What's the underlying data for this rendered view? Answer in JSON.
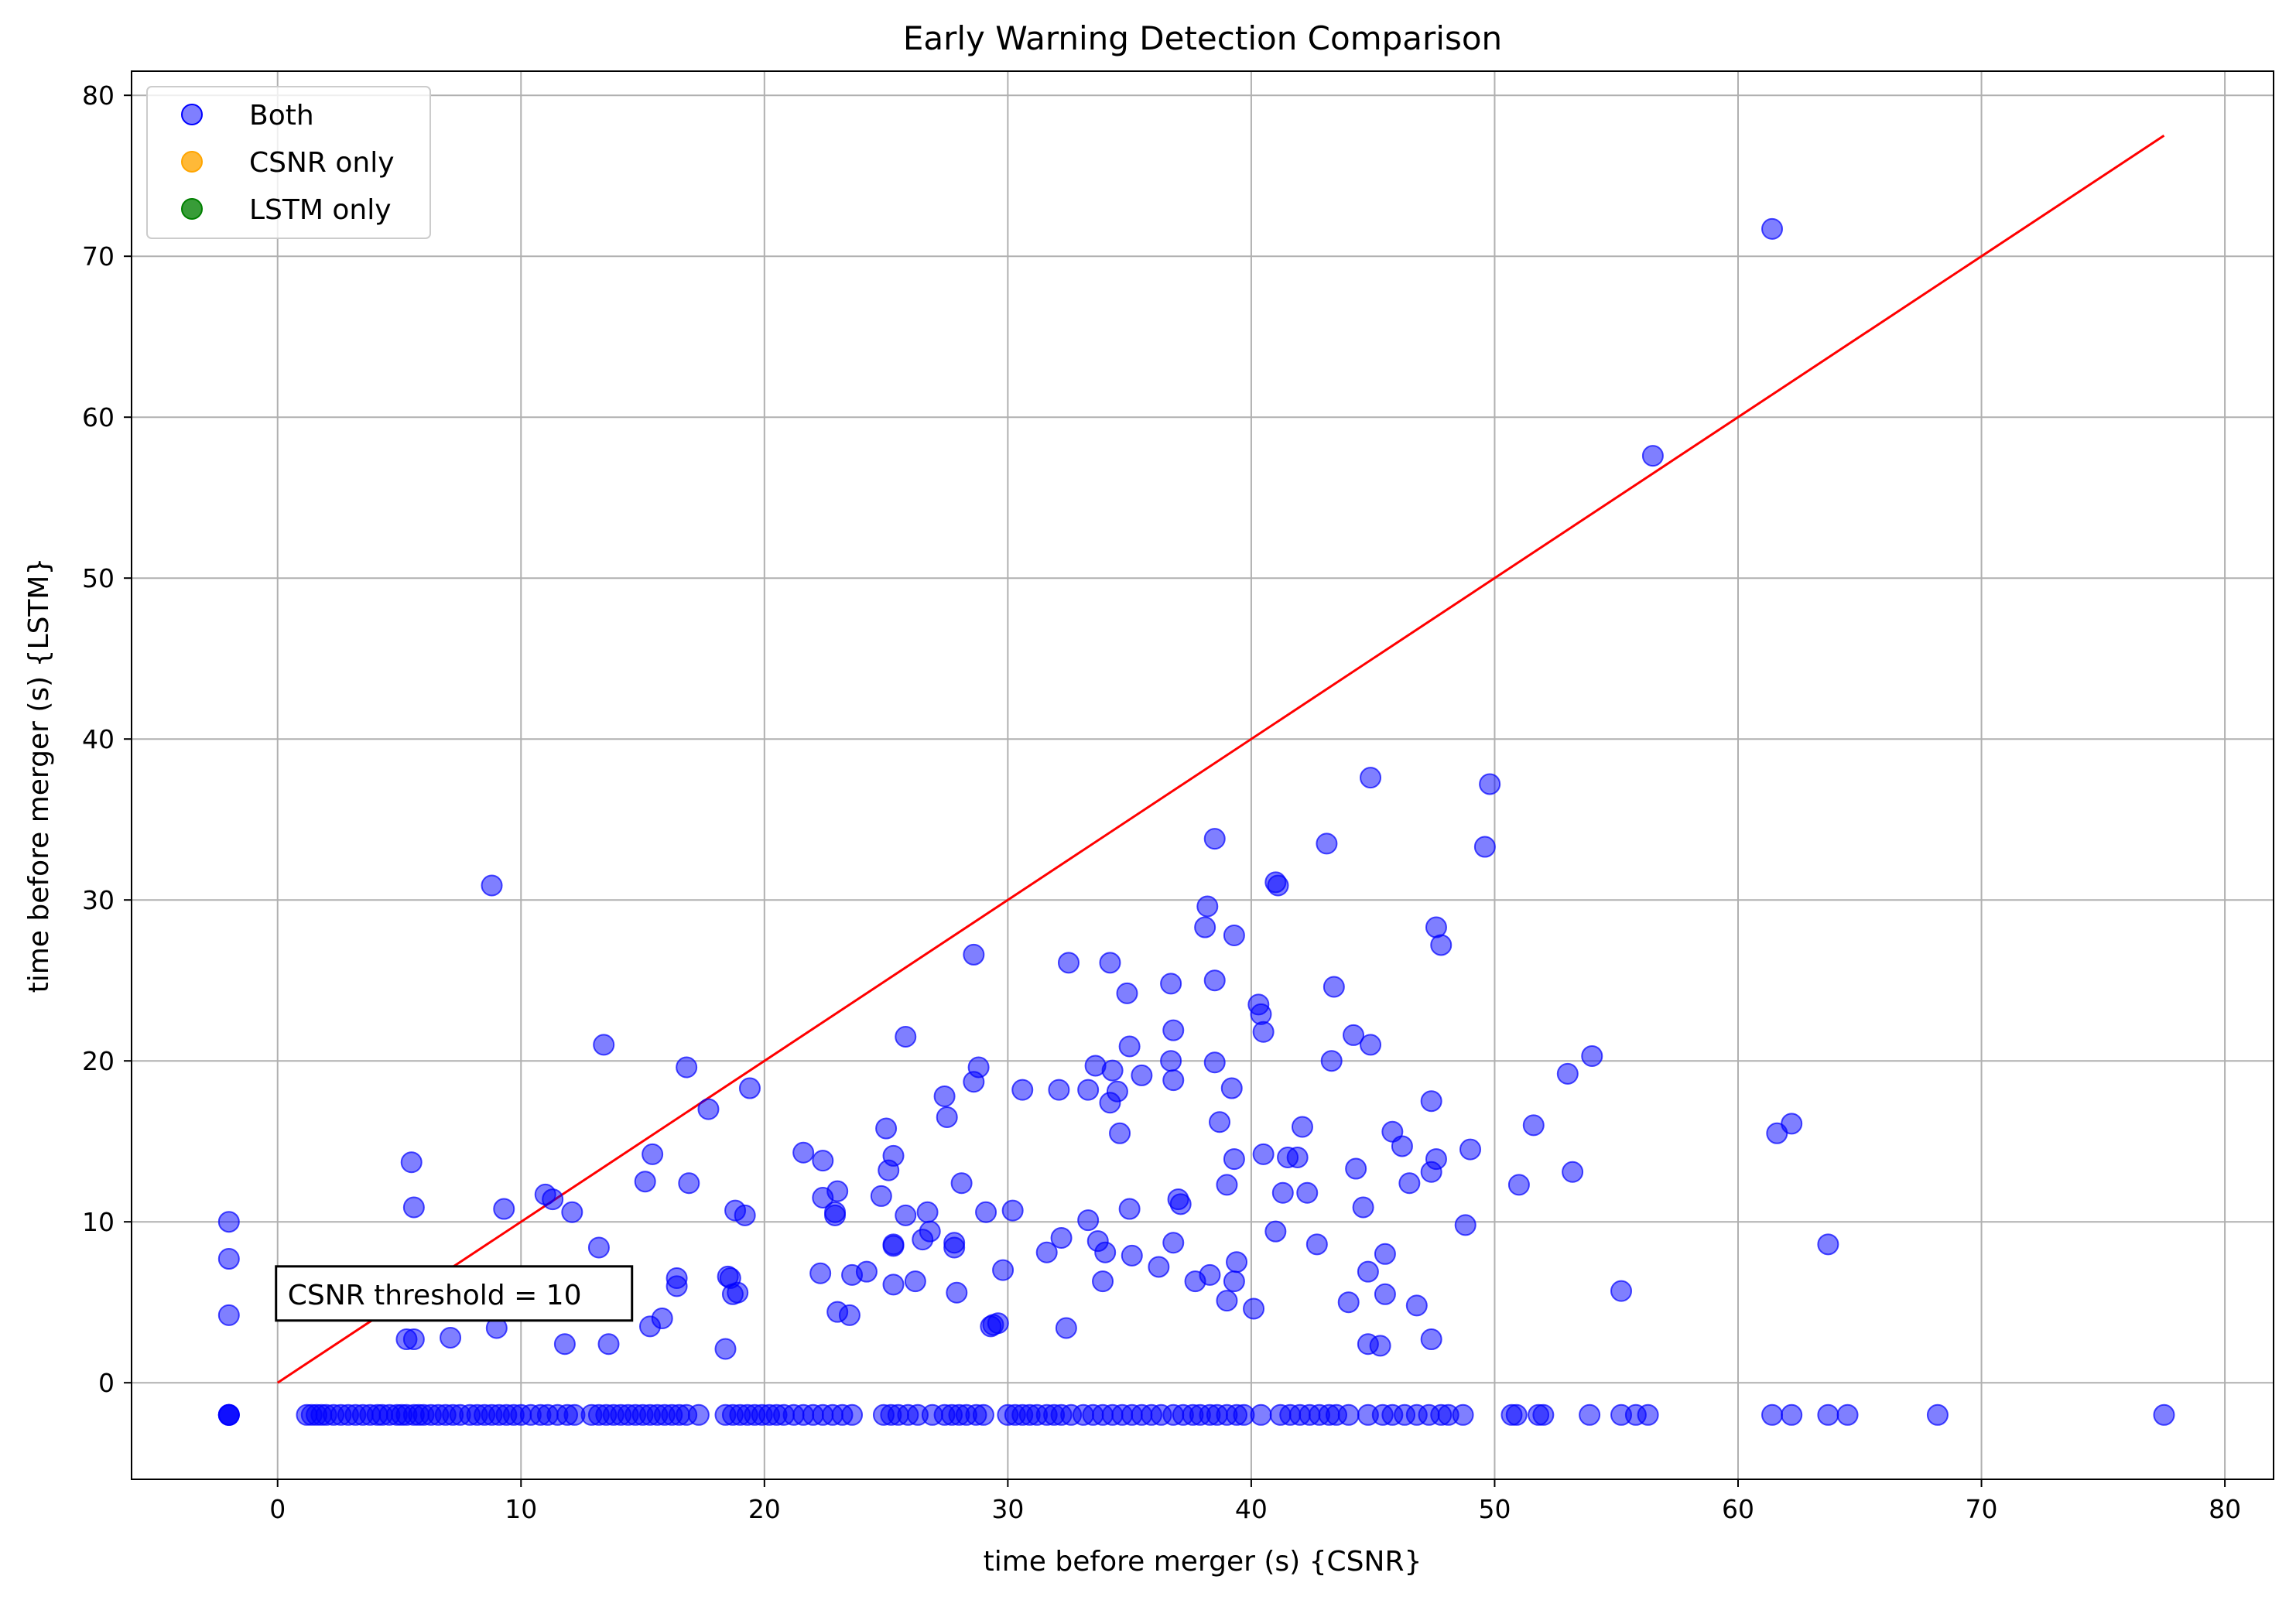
{
  "chart_data": {
    "type": "scatter",
    "title": "Early Warning Detection Comparison",
    "xlabel": "time before merger (s) {CSNR}",
    "ylabel": "time before merger (s) {LSTM}",
    "xlim": [
      -6,
      82
    ],
    "ylim": [
      -6,
      81.5
    ],
    "xticks": [
      0,
      10,
      20,
      30,
      40,
      50,
      60,
      70,
      80
    ],
    "yticks": [
      0,
      10,
      20,
      30,
      40,
      50,
      60,
      70,
      80
    ],
    "grid": true,
    "legend_position": "top-left",
    "series": [
      {
        "name": "Both",
        "color": "#0000ff",
        "points": [
          [
            -2,
            10.0
          ],
          [
            -2,
            7.7
          ],
          [
            -2,
            4.2
          ],
          [
            5.5,
            13.7
          ],
          [
            5.6,
            10.9
          ],
          [
            5.3,
            2.7
          ],
          [
            5.6,
            2.7
          ],
          [
            7.1,
            2.8
          ],
          [
            8.8,
            30.9
          ],
          [
            9.0,
            3.4
          ],
          [
            9.3,
            10.8
          ],
          [
            10.5,
            4.6
          ],
          [
            11.0,
            11.7
          ],
          [
            11.3,
            11.4
          ],
          [
            11.8,
            2.4
          ],
          [
            12.1,
            10.6
          ],
          [
            13.2,
            8.4
          ],
          [
            13.4,
            21.0
          ],
          [
            13.6,
            2.4
          ],
          [
            15.1,
            12.5
          ],
          [
            15.4,
            14.2
          ],
          [
            15.3,
            3.5
          ],
          [
            15.8,
            4.0
          ],
          [
            16.4,
            6.5
          ],
          [
            16.4,
            6.0
          ],
          [
            16.8,
            19.6
          ],
          [
            16.9,
            12.4
          ],
          [
            17.7,
            17.0
          ],
          [
            18.4,
            2.1
          ],
          [
            18.5,
            6.6
          ],
          [
            18.6,
            6.5
          ],
          [
            18.7,
            5.5
          ],
          [
            18.8,
            10.7
          ],
          [
            18.9,
            5.6
          ],
          [
            19.2,
            10.4
          ],
          [
            19.4,
            18.3
          ],
          [
            21.6,
            14.3
          ],
          [
            22.4,
            13.8
          ],
          [
            22.3,
            6.8
          ],
          [
            22.4,
            11.5
          ],
          [
            22.9,
            10.6
          ],
          [
            22.9,
            10.4
          ],
          [
            23.0,
            11.9
          ],
          [
            23.0,
            4.4
          ],
          [
            23.5,
            4.2
          ],
          [
            23.6,
            6.7
          ],
          [
            24.2,
            6.9
          ],
          [
            24.8,
            11.6
          ],
          [
            25.0,
            15.8
          ],
          [
            25.1,
            13.2
          ],
          [
            25.3,
            14.1
          ],
          [
            25.3,
            8.6
          ],
          [
            25.3,
            8.5
          ],
          [
            25.3,
            6.1
          ],
          [
            25.8,
            21.5
          ],
          [
            25.8,
            10.4
          ],
          [
            26.2,
            6.3
          ],
          [
            26.5,
            8.9
          ],
          [
            26.7,
            10.6
          ],
          [
            26.8,
            9.4
          ],
          [
            27.4,
            17.8
          ],
          [
            27.5,
            16.5
          ],
          [
            27.8,
            8.7
          ],
          [
            27.8,
            8.4
          ],
          [
            27.9,
            5.6
          ],
          [
            28.1,
            12.4
          ],
          [
            28.6,
            18.7
          ],
          [
            28.6,
            26.6
          ],
          [
            28.8,
            19.6
          ],
          [
            29.1,
            10.6
          ],
          [
            29.3,
            3.5
          ],
          [
            29.4,
            3.6
          ],
          [
            29.6,
            3.7
          ],
          [
            29.8,
            7.0
          ],
          [
            30.2,
            10.7
          ],
          [
            30.6,
            18.2
          ],
          [
            31.6,
            8.1
          ],
          [
            32.1,
            18.2
          ],
          [
            32.2,
            9.0
          ],
          [
            32.4,
            3.4
          ],
          [
            32.5,
            26.1
          ],
          [
            33.3,
            18.2
          ],
          [
            33.3,
            10.1
          ],
          [
            33.6,
            19.7
          ],
          [
            33.7,
            8.8
          ],
          [
            33.9,
            6.3
          ],
          [
            34.0,
            8.1
          ],
          [
            34.2,
            26.1
          ],
          [
            34.2,
            17.4
          ],
          [
            34.3,
            19.4
          ],
          [
            34.5,
            18.1
          ],
          [
            34.6,
            15.5
          ],
          [
            34.9,
            24.2
          ],
          [
            35.0,
            10.8
          ],
          [
            35.0,
            20.9
          ],
          [
            35.1,
            7.9
          ],
          [
            35.5,
            19.1
          ],
          [
            36.2,
            7.2
          ],
          [
            36.7,
            24.8
          ],
          [
            36.7,
            20.0
          ],
          [
            36.8,
            21.9
          ],
          [
            36.8,
            18.8
          ],
          [
            36.8,
            8.7
          ],
          [
            37.0,
            11.4
          ],
          [
            37.1,
            11.1
          ],
          [
            37.7,
            6.3
          ],
          [
            38.1,
            28.3
          ],
          [
            38.2,
            29.6
          ],
          [
            38.3,
            6.7
          ],
          [
            38.5,
            25.0
          ],
          [
            38.5,
            19.9
          ],
          [
            38.5,
            33.8
          ],
          [
            38.7,
            16.2
          ],
          [
            39.0,
            5.1
          ],
          [
            39.0,
            12.3
          ],
          [
            39.2,
            18.3
          ],
          [
            39.3,
            13.9
          ],
          [
            39.3,
            6.3
          ],
          [
            39.3,
            27.8
          ],
          [
            39.4,
            7.5
          ],
          [
            40.1,
            4.6
          ],
          [
            40.3,
            23.5
          ],
          [
            40.4,
            22.9
          ],
          [
            40.5,
            21.8
          ],
          [
            40.5,
            14.2
          ],
          [
            41.0,
            9.4
          ],
          [
            41.0,
            31.1
          ],
          [
            41.1,
            30.9
          ],
          [
            41.3,
            11.8
          ],
          [
            41.5,
            14.0
          ],
          [
            41.9,
            14.0
          ],
          [
            42.1,
            15.9
          ],
          [
            42.3,
            11.8
          ],
          [
            42.7,
            8.6
          ],
          [
            43.1,
            33.5
          ],
          [
            43.3,
            20.0
          ],
          [
            43.4,
            24.6
          ],
          [
            44.0,
            5.0
          ],
          [
            44.2,
            21.6
          ],
          [
            44.3,
            13.3
          ],
          [
            44.6,
            10.9
          ],
          [
            44.8,
            2.4
          ],
          [
            44.8,
            6.9
          ],
          [
            44.9,
            37.6
          ],
          [
            44.9,
            21.0
          ],
          [
            45.3,
            2.3
          ],
          [
            45.5,
            8.0
          ],
          [
            45.5,
            5.5
          ],
          [
            45.8,
            15.6
          ],
          [
            46.2,
            14.7
          ],
          [
            46.5,
            12.4
          ],
          [
            46.8,
            4.8
          ],
          [
            47.4,
            2.7
          ],
          [
            47.4,
            17.5
          ],
          [
            47.4,
            13.1
          ],
          [
            47.6,
            13.9
          ],
          [
            47.6,
            28.3
          ],
          [
            47.8,
            27.2
          ],
          [
            48.8,
            9.8
          ],
          [
            49.0,
            14.5
          ],
          [
            49.6,
            33.3
          ],
          [
            49.8,
            37.2
          ],
          [
            51.0,
            12.3
          ],
          [
            51.6,
            16.0
          ],
          [
            53.0,
            19.2
          ],
          [
            53.2,
            13.1
          ],
          [
            54.0,
            20.3
          ],
          [
            55.2,
            5.7
          ],
          [
            56.5,
            57.6
          ],
          [
            61.4,
            71.7
          ],
          [
            61.6,
            15.5
          ],
          [
            62.2,
            16.1
          ],
          [
            63.7,
            8.6
          ]
        ]
      },
      {
        "name": "CSNR only",
        "color": "#ffa500",
        "points": []
      },
      {
        "name": "LSTM only",
        "color": "#008000",
        "points": []
      }
    ],
    "no_detection_value": -2,
    "no_detection_x": [
      -2,
      -2,
      -2,
      -2,
      1.2,
      1.4,
      1.6,
      1.8,
      2.0,
      2.3,
      2.6,
      2.9,
      3.2,
      3.5,
      3.8,
      4.1,
      4.3,
      4.6,
      4.9,
      5.1,
      5.3,
      5.6,
      5.8,
      6.0,
      6.3,
      6.6,
      6.9,
      7.2,
      7.5,
      7.9,
      8.2,
      8.5,
      8.8,
      9.1,
      9.4,
      9.7,
      10.0,
      10.4,
      10.8,
      11.1,
      11.5,
      11.9,
      12.2,
      12.9,
      13.2,
      13.5,
      13.8,
      14.1,
      14.4,
      14.7,
      15.0,
      15.3,
      15.6,
      15.9,
      16.2,
      16.5,
      16.8,
      17.3,
      18.4,
      18.7,
      19.0,
      19.3,
      19.6,
      19.9,
      20.2,
      20.5,
      20.8,
      21.2,
      21.6,
      22.0,
      22.4,
      22.8,
      23.2,
      23.6,
      24.9,
      25.2,
      25.5,
      25.9,
      26.3,
      26.9,
      27.4,
      27.7,
      28.0,
      28.3,
      28.7,
      29.0,
      30.0,
      30.3,
      30.6,
      30.9,
      31.2,
      31.6,
      31.9,
      32.2,
      32.6,
      33.1,
      33.5,
      33.9,
      34.3,
      34.7,
      35.1,
      35.5,
      35.9,
      36.3,
      36.8,
      37.2,
      37.6,
      37.9,
      38.3,
      38.6,
      39.0,
      39.4,
      39.7,
      40.4,
      41.2,
      41.6,
      42.0,
      42.4,
      42.8,
      43.2,
      43.5,
      44.0,
      44.8,
      45.4,
      45.8,
      46.3,
      46.8,
      47.3,
      47.8,
      48.1,
      48.7,
      50.7,
      50.9,
      51.8,
      52.0,
      53.9,
      55.2,
      55.8,
      56.3,
      61.4,
      62.2,
      63.7,
      64.5,
      68.2,
      77.5
    ],
    "reference_line": {
      "from": [
        0,
        0
      ],
      "to": [
        77.5,
        77.5
      ],
      "color": "#ff0000"
    },
    "annotation": {
      "text": "CSNR threshold = 10",
      "x": 0,
      "y": 5.5
    }
  }
}
